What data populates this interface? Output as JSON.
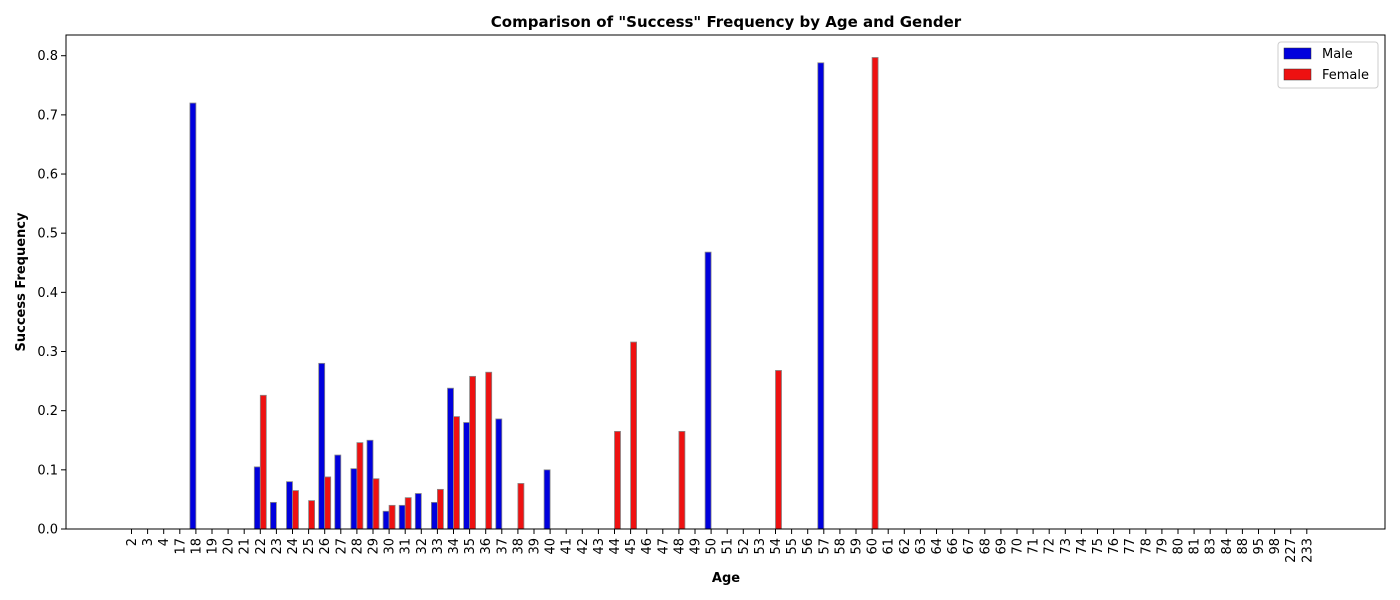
{
  "chart_data": {
    "type": "bar",
    "title": "Comparison of \"Success\" Frequency by Age and Gender",
    "xlabel": "Age",
    "ylabel": "Success Frequency",
    "ylim": [
      0,
      0.835
    ],
    "yticks": [
      0.0,
      0.1,
      0.2,
      0.3,
      0.4,
      0.5,
      0.6,
      0.7,
      0.8
    ],
    "legend_position": "top-right",
    "categories": [
      "2",
      "3",
      "4",
      "17",
      "18",
      "19",
      "20",
      "21",
      "22",
      "23",
      "24",
      "25",
      "26",
      "27",
      "28",
      "29",
      "30",
      "31",
      "32",
      "33",
      "34",
      "35",
      "36",
      "37",
      "38",
      "39",
      "40",
      "41",
      "42",
      "43",
      "44",
      "45",
      "46",
      "47",
      "48",
      "49",
      "50",
      "51",
      "52",
      "53",
      "54",
      "55",
      "56",
      "57",
      "58",
      "59",
      "60",
      "61",
      "62",
      "63",
      "64",
      "66",
      "67",
      "68",
      "69",
      "70",
      "71",
      "72",
      "73",
      "74",
      "75",
      "76",
      "77",
      "78",
      "79",
      "80",
      "81",
      "83",
      "84",
      "88",
      "95",
      "98",
      "227",
      "233"
    ],
    "series": [
      {
        "name": "Male",
        "color": "#0000dd",
        "values": [
          0,
          0,
          0,
          0,
          0.72,
          0,
          0,
          0,
          0.105,
          0.045,
          0.08,
          0,
          0.28,
          0.125,
          0.102,
          0.15,
          0.03,
          0.04,
          0.06,
          0.045,
          0.238,
          0.18,
          0,
          0.186,
          0,
          0,
          0.1,
          0,
          0,
          0,
          0,
          0,
          0,
          0,
          0,
          0,
          0.468,
          0,
          0,
          0,
          0,
          0,
          0,
          0.788,
          0,
          0,
          0,
          0,
          0,
          0,
          0,
          0,
          0,
          0,
          0,
          0,
          0,
          0,
          0,
          0,
          0,
          0,
          0,
          0,
          0,
          0,
          0,
          0,
          0,
          0,
          0,
          0,
          0,
          0
        ]
      },
      {
        "name": "Female",
        "color": "#ee1111",
        "values": [
          0,
          0,
          0,
          0,
          0,
          0,
          0,
          0,
          0.226,
          0,
          0.065,
          0.048,
          0.088,
          0,
          0.146,
          0.085,
          0.04,
          0.053,
          0,
          0.067,
          0.19,
          0.258,
          0.265,
          0,
          0.077,
          0,
          0,
          0,
          0,
          0,
          0.165,
          0.316,
          0,
          0,
          0.165,
          0,
          0,
          0,
          0,
          0,
          0.268,
          0,
          0,
          0,
          0,
          0,
          0.797,
          0,
          0,
          0,
          0,
          0,
          0,
          0,
          0,
          0,
          0,
          0,
          0,
          0,
          0,
          0,
          0,
          0,
          0,
          0,
          0,
          0,
          0,
          0,
          0,
          0,
          0,
          0
        ]
      }
    ]
  }
}
